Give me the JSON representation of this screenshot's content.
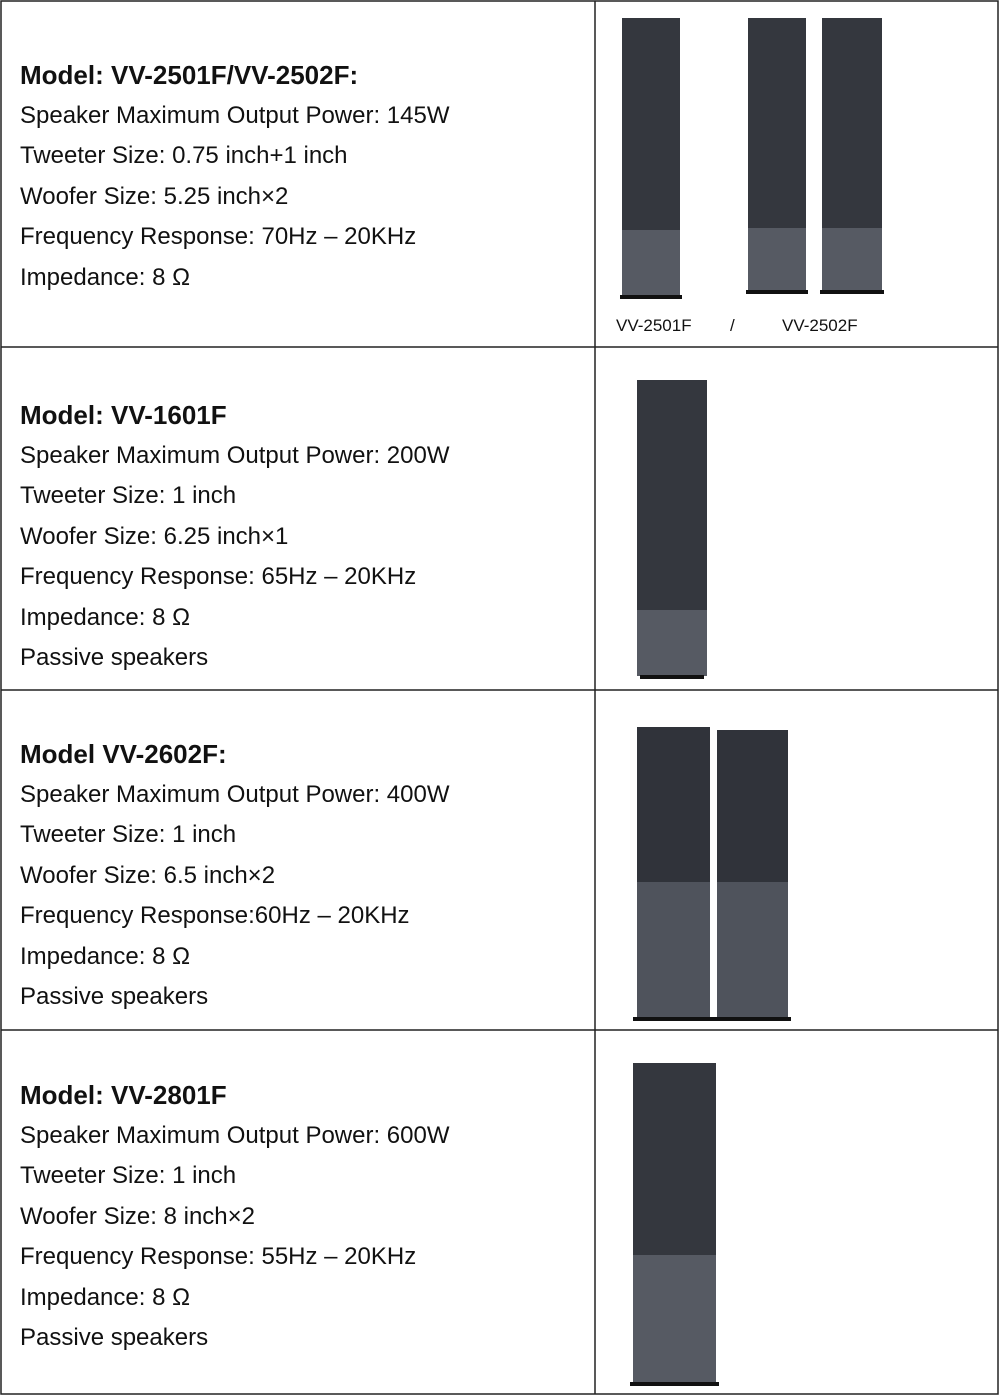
{
  "rows": [
    {
      "title": "Model: VV-2501F/VV-2502F:",
      "lines": [
        "Speaker Maximum Output Power: 145W",
        "Tweeter Size: 0.75 inch+1 inch",
        "Woofer Size: 5.25 inch×2",
        "Frequency Response: 70Hz – 20KHz",
        "Impedance: 8 Ω"
      ],
      "caption": [
        "VV-2501F",
        "/",
        "VV-2502F"
      ]
    },
    {
      "title": "Model: VV-1601F",
      "lines": [
        "Speaker Maximum Output Power: 200W",
        "Tweeter Size: 1 inch",
        "Woofer Size: 6.25 inch×1",
        "Frequency Response: 65Hz – 20KHz",
        "Impedance: 8 Ω",
        "Passive speakers"
      ]
    },
    {
      "title": "Model VV-2602F:",
      "lines": [
        "Speaker Maximum Output Power: 400W",
        "Tweeter Size: 1 inch",
        "Woofer Size: 6.5 inch×2",
        "Frequency Response:60Hz – 20KHz",
        "Impedance: 8 Ω",
        "Passive speakers"
      ]
    },
    {
      "title": "Model: VV-2801F",
      "lines": [
        "Speaker Maximum Output Power: 600W",
        "Tweeter Size: 1 inch",
        "Woofer Size: 8 inch×2",
        "Frequency Response: 55Hz – 20KHz",
        "Impedance: 8 Ω",
        "Passive speakers"
      ]
    }
  ]
}
